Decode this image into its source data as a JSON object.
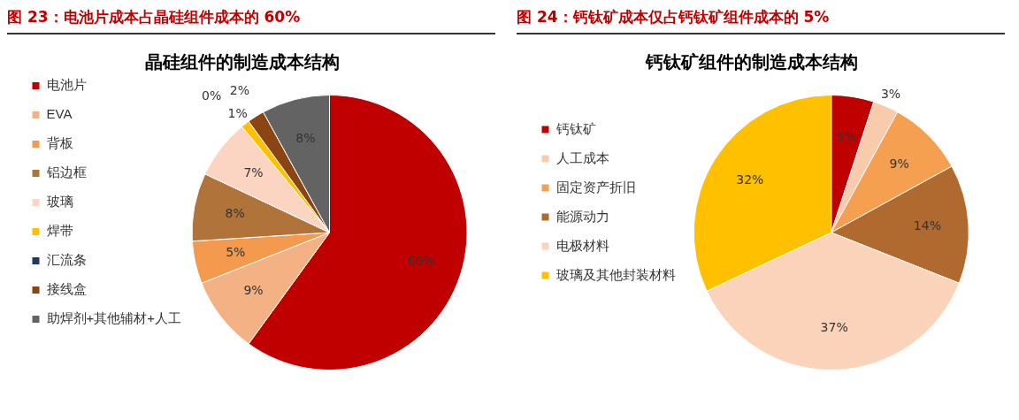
{
  "chart_data": [
    {
      "type": "pie",
      "title": "图 23：电池片成本占晶硅组件成本的 60%",
      "subtitle": "晶硅组件的制造成本结构",
      "legend": "left",
      "categories": [
        "电池片",
        "EVA",
        "背板",
        "铝边框",
        "玻璃",
        "焊带",
        "汇流条",
        "接线盒",
        "助焊剂+其他辅材+人工"
      ],
      "values": [
        60,
        9,
        5,
        8,
        7,
        1,
        0,
        2,
        8
      ],
      "value_labels": [
        "60%",
        "9%",
        "5%",
        "8%",
        "7%",
        "1%",
        "0%",
        "2%",
        "8%"
      ],
      "colors": [
        "#c00000",
        "#f4b183",
        "#f39a4f",
        "#b0743a",
        "#fbd5c2",
        "#ffc000",
        "#1f3864",
        "#8b4513",
        "#636363"
      ]
    },
    {
      "type": "pie",
      "title": "图 24：钙钛矿成本仅占钙钛矿组件成本的 5%",
      "subtitle": "钙钛矿组件的制造成本结构",
      "legend": "left",
      "categories": [
        "钙钛矿",
        "人工成本",
        "固定资产折旧",
        "能源动力",
        "电极材料",
        "玻璃及其他封装材料"
      ],
      "values": [
        5,
        3,
        9,
        14,
        37,
        32
      ],
      "value_labels": [
        "5%",
        "3%",
        "9%",
        "14%",
        "37%",
        "32%"
      ],
      "colors": [
        "#c00000",
        "#f8cbad",
        "#f4a050",
        "#b06a30",
        "#fbd3bb",
        "#ffc000"
      ]
    }
  ]
}
